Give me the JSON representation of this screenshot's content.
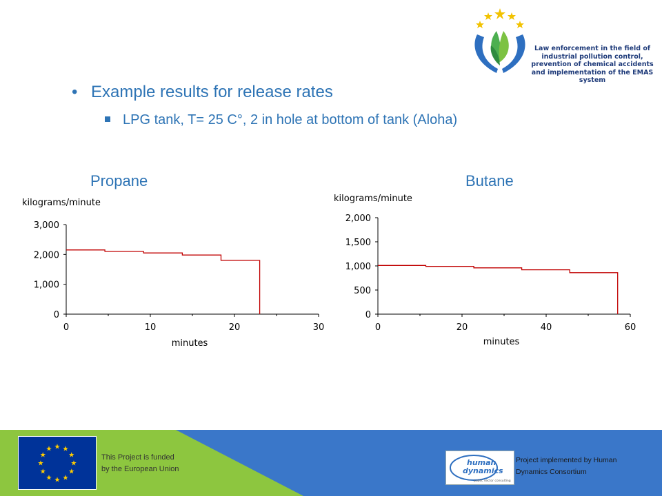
{
  "logo": {
    "text_lines": [
      "Law enforcement in the field of",
      "industrial pollution control,",
      "prevention of chemical accidents",
      "and implementation of the EMAS system"
    ],
    "icon": "hands-with-leaves-and-stars-logo"
  },
  "content": {
    "bullet_main": "Example results for release rates",
    "bullet_sub": "LPG tank, T= 25 C°, 2 in hole at bottom of tank (Aloha)"
  },
  "chart_data": [
    {
      "type": "line",
      "title": "Propane",
      "ylabel": "kilograms/minute",
      "xlabel": "minutes",
      "xlim": [
        0,
        30
      ],
      "ylim": [
        0,
        3000
      ],
      "x_ticks": [
        "0",
        "10",
        "20",
        "30"
      ],
      "y_ticks": [
        "0",
        "1,000",
        "2,000",
        "3,000"
      ],
      "x_tick_values": [
        0,
        10,
        20,
        30
      ],
      "y_tick_values": [
        0,
        1000,
        2000,
        3000
      ],
      "minor_x_ticks": [
        5,
        15,
        25
      ],
      "series": [
        {
          "x": [
            0,
            4.6,
            4.6,
            9.2,
            9.2,
            13.8,
            13.8,
            18.4,
            18.4,
            23,
            23
          ],
          "y": [
            2150,
            2150,
            2100,
            2100,
            2050,
            2050,
            1980,
            1980,
            1800,
            1800,
            0
          ],
          "color": "#c00000"
        }
      ]
    },
    {
      "type": "line",
      "title": "Butane",
      "ylabel": "kilograms/minute",
      "xlabel": "minutes",
      "xlim": [
        0,
        60
      ],
      "ylim": [
        0,
        2000
      ],
      "x_ticks": [
        "0",
        "20",
        "40",
        "60"
      ],
      "y_ticks": [
        "0",
        "500",
        "1,000",
        "1,500",
        "2,000"
      ],
      "x_tick_values": [
        0,
        20,
        40,
        60
      ],
      "y_tick_values": [
        0,
        500,
        1000,
        1500,
        2000
      ],
      "minor_x_ticks": [
        10,
        30,
        50
      ],
      "series": [
        {
          "x": [
            0,
            11.4,
            11.4,
            22.8,
            22.8,
            34.2,
            34.2,
            45.6,
            45.6,
            57,
            57
          ],
          "y": [
            1010,
            1010,
            990,
            990,
            960,
            960,
            920,
            920,
            860,
            860,
            0
          ],
          "color": "#c00000"
        }
      ]
    }
  ],
  "footer": {
    "eu_text_lines": [
      "This Project is funded",
      "by the European Union"
    ],
    "hd_text_lines": [
      "Project implemented by Human",
      "Dynamics Consortium"
    ],
    "hd_logo_word1": "human",
    "hd_logo_word2": "dynamics",
    "hd_logo_tagline": "public sector consulting",
    "colors": {
      "green": "#8dc63f",
      "blue": "#3a77c9"
    }
  }
}
